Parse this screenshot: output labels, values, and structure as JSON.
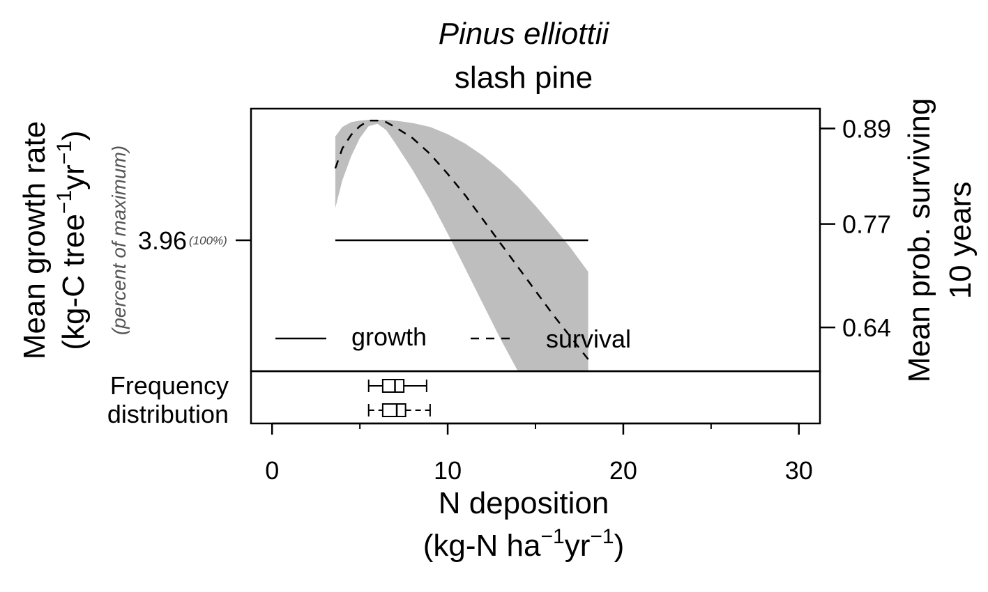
{
  "chart_data": {
    "type": "line",
    "title_italic": "Pinus elliottii",
    "title": "slash pine",
    "xlabel": "N deposition",
    "xlabel_units": {
      "open": "(kg-N ha",
      "exp1": "−1",
      "mid": "yr",
      "exp2": "−1",
      "close": ")"
    },
    "ylabel": "Mean growth rate",
    "ylabel_units": {
      "open": "(kg-C tree",
      "exp1": "−1",
      "mid": "yr",
      "exp2": "−1",
      "close": ")"
    },
    "ylabel_note": "(percent of maximum)",
    "y2label": "Mean prob. surviving",
    "y2label_line2": "10 years",
    "xlim": [
      -1.2,
      31.2
    ],
    "x_ticks": [
      0,
      10,
      20,
      30
    ],
    "x_minor_ticks": [
      5,
      15,
      25
    ],
    "ylim2": [
      0.585,
      0.915
    ],
    "y2_ticks": [
      0.64,
      0.77,
      0.89
    ],
    "y_ticks": [
      {
        "value": 3.96,
        "label": "3.96",
        "pct": "(100%)"
      }
    ],
    "series": [
      {
        "name": "growth",
        "style": "solid",
        "x": [
          3.6,
          18.0
        ],
        "y_left": [
          3.96,
          3.96
        ]
      },
      {
        "name": "survival",
        "style": "dashed",
        "x": [
          3.6,
          4.0,
          4.5,
          5.0,
          5.5,
          6.0,
          6.5,
          7.0,
          8.0,
          9.0,
          10.0,
          11.0,
          12.0,
          13.0,
          14.0,
          15.0,
          16.0,
          17.0,
          18.0
        ],
        "y": [
          0.84,
          0.865,
          0.882,
          0.893,
          0.9,
          0.9,
          0.898,
          0.892,
          0.878,
          0.858,
          0.833,
          0.806,
          0.776,
          0.746,
          0.716,
          0.686,
          0.656,
          0.628,
          0.6
        ],
        "ci_lower": [
          0.79,
          0.825,
          0.855,
          0.878,
          0.893,
          0.896,
          0.888,
          0.872,
          0.838,
          0.8,
          0.758,
          0.714,
          0.67,
          0.626,
          0.585,
          0.585,
          0.585,
          0.585,
          0.585
        ],
        "ci_upper": [
          0.88,
          0.892,
          0.898,
          0.9,
          0.901,
          0.901,
          0.901,
          0.9,
          0.897,
          0.892,
          0.883,
          0.871,
          0.856,
          0.838,
          0.817,
          0.793,
          0.767,
          0.74,
          0.71
        ]
      }
    ],
    "ci_color": "#bebebe",
    "frequency_label": [
      "Frequency",
      "distribution"
    ],
    "boxplots": [
      {
        "min": 5.5,
        "q1": 6.3,
        "median": 7.0,
        "q3": 7.5,
        "max": 8.8
      },
      {
        "min": 5.5,
        "q1": 6.3,
        "median": 7.1,
        "q3": 7.6,
        "max": 9.0
      }
    ],
    "legend": {
      "placement": "bottom-left",
      "entries": [
        {
          "label": "growth",
          "style": "solid"
        },
        {
          "label": "survival",
          "style": "dashed"
        }
      ]
    }
  }
}
